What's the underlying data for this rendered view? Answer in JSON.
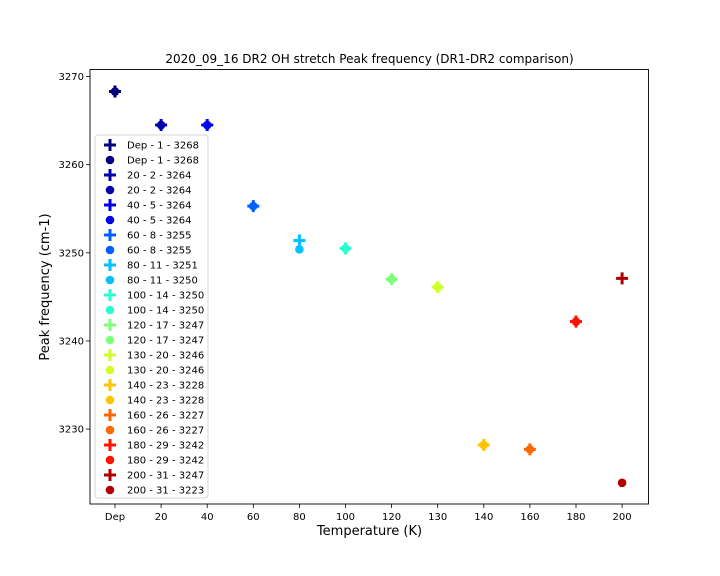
{
  "chart_data": {
    "type": "scatter",
    "title": "2020_09_16 DR2 OH stretch Peak frequency (DR1-DR2 comparison)",
    "xlabel": "Temperature (K)",
    "ylabel": "Peak frequency (cm-1)",
    "categories": [
      "Dep",
      "20",
      "40",
      "60",
      "80",
      "100",
      "120",
      "130",
      "140",
      "160",
      "180",
      "200"
    ],
    "yticks": [
      3230,
      3240,
      3250,
      3260,
      3270
    ],
    "ylim": [
      3221.5,
      3270.8
    ],
    "grid": false,
    "legend_position": "left",
    "series": [
      {
        "name": "Dep - 1 - 3268",
        "marker": "plus",
        "color": "#00007f",
        "x": "Dep",
        "y": 3268.3
      },
      {
        "name": "Dep - 1 - 3268",
        "marker": "circle",
        "color": "#00007f",
        "x": "Dep",
        "y": 3268.3
      },
      {
        "name": "20 - 2 - 3264",
        "marker": "plus",
        "color": "#0000ac",
        "x": "20",
        "y": 3264.5
      },
      {
        "name": "20 - 2 - 3264",
        "marker": "circle",
        "color": "#0000ac",
        "x": "20",
        "y": 3264.5
      },
      {
        "name": "40 - 5 - 3264",
        "marker": "plus",
        "color": "#0000e8",
        "x": "40",
        "y": 3264.5
      },
      {
        "name": "40 - 5 - 3264",
        "marker": "circle",
        "color": "#0000e8",
        "x": "40",
        "y": 3264.5
      },
      {
        "name": "60 - 8 - 3255",
        "marker": "plus",
        "color": "#0060ff",
        "x": "60",
        "y": 3255.3
      },
      {
        "name": "60 - 8 - 3255",
        "marker": "circle",
        "color": "#0060ff",
        "x": "60",
        "y": 3255.3
      },
      {
        "name": "80 - 11 - 3251",
        "marker": "plus",
        "color": "#00c0ff",
        "x": "80",
        "y": 3251.4
      },
      {
        "name": "80 - 11 - 3250",
        "marker": "circle",
        "color": "#00c0ff",
        "x": "80",
        "y": 3250.4
      },
      {
        "name": "100 - 14 - 3250",
        "marker": "plus",
        "color": "#29ffce",
        "x": "100",
        "y": 3250.5
      },
      {
        "name": "100 - 14 - 3250",
        "marker": "circle",
        "color": "#29ffce",
        "x": "100",
        "y": 3250.5
      },
      {
        "name": "120 - 17 - 3247",
        "marker": "plus",
        "color": "#7dff7a",
        "x": "120",
        "y": 3247.0
      },
      {
        "name": "120 - 17 - 3247",
        "marker": "circle",
        "color": "#7dff7a",
        "x": "120",
        "y": 3247.0
      },
      {
        "name": "130 - 20 - 3246",
        "marker": "plus",
        "color": "#ceff29",
        "x": "130",
        "y": 3246.1
      },
      {
        "name": "130 - 20 - 3246",
        "marker": "circle",
        "color": "#ceff29",
        "x": "130",
        "y": 3246.1
      },
      {
        "name": "140 - 23 - 3228",
        "marker": "plus",
        "color": "#ffc400",
        "x": "140",
        "y": 3228.2
      },
      {
        "name": "140 - 23 - 3228",
        "marker": "circle",
        "color": "#ffc400",
        "x": "140",
        "y": 3228.2
      },
      {
        "name": "160 - 26 - 3227",
        "marker": "plus",
        "color": "#ff6800",
        "x": "160",
        "y": 3227.7
      },
      {
        "name": "160 - 26 - 3227",
        "marker": "circle",
        "color": "#ff6800",
        "x": "160",
        "y": 3227.7
      },
      {
        "name": "180 - 29 - 3242",
        "marker": "plus",
        "color": "#ff1300",
        "x": "180",
        "y": 3242.2
      },
      {
        "name": "180 - 29 - 3242",
        "marker": "circle",
        "color": "#ff1300",
        "x": "180",
        "y": 3242.2
      },
      {
        "name": "200 - 31 - 3247",
        "marker": "plus",
        "color": "#b20000",
        "x": "200",
        "y": 3247.1
      },
      {
        "name": "200 - 31 - 3223",
        "marker": "circle",
        "color": "#b20000",
        "x": "200",
        "y": 3223.9
      }
    ]
  }
}
